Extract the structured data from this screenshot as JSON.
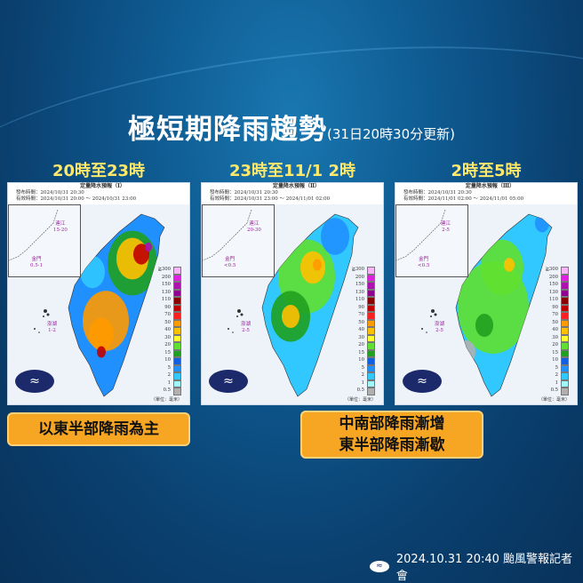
{
  "title": {
    "main": "極短期降雨趨勢",
    "sub": "(31日20時30分更新)"
  },
  "panels": [
    {
      "heading": "20時至23時",
      "map_title": "定量降水預報（Ⅰ）",
      "issued": "發布時間：2024/10/31 20:30",
      "valid": "有效時間：2024/10/31 20:00 ～ 2024/10/31 23:00",
      "matsu": "連江",
      "matsu_val": "15-20",
      "kinmen": "金門",
      "kinmen_val": "0.5-1",
      "penghu": "澎湖",
      "penghu_val": "1-2",
      "intensity": "heavy-east"
    },
    {
      "heading": "23時至11/1 2時",
      "map_title": "定量降水預報（Ⅱ）",
      "issued": "發布時間：2024/10/31 20:30",
      "valid": "有效時間：2024/10/31 23:00 ～ 2024/11/01 02:00",
      "matsu": "連江",
      "matsu_val": "20-30",
      "kinmen": "金門",
      "kinmen_val": "<0.5",
      "penghu": "澎湖",
      "penghu_val": "2-5",
      "intensity": "moderate-central"
    },
    {
      "heading": "2時至5時",
      "map_title": "定量降水預報（Ⅲ）",
      "issued": "發布時間：2024/10/31 20:30",
      "valid": "有效時間：2024/11/01 02:00 ～ 2024/11/01 05:00",
      "matsu": "連江",
      "matsu_val": "2-5",
      "kinmen": "金門",
      "kinmen_val": "<0.5",
      "penghu": "澎湖",
      "penghu_val": "2-5",
      "intensity": "light"
    }
  ],
  "legend": {
    "labels": [
      "≧300",
      "200",
      "150",
      "130",
      "110",
      "90",
      "70",
      "50",
      "40",
      "30",
      "20",
      "15",
      "10",
      "5",
      "2",
      "1",
      "0.5"
    ],
    "colors": [
      "#f8b4f8",
      "#e020e0",
      "#b010b0",
      "#900090",
      "#8a0000",
      "#c00000",
      "#ff2020",
      "#ff9a00",
      "#ffc000",
      "#ffff30",
      "#60e030",
      "#20a020",
      "#1060e0",
      "#2090ff",
      "#30c8ff",
      "#a0f8ff",
      "#b0b0b0"
    ],
    "unit": "（單位：毫米）"
  },
  "notes": {
    "left": "以東半部降雨為主",
    "right_line1": "中南部降雨漸增",
    "right_line2": "東半部降雨漸歇"
  },
  "footer": {
    "text": "2024.10.31  20:40 颱風警報記者會"
  },
  "colors": {
    "accent_yellow": "#ffe86a",
    "note_orange": "#f6a623",
    "background": "#0e5a91"
  }
}
